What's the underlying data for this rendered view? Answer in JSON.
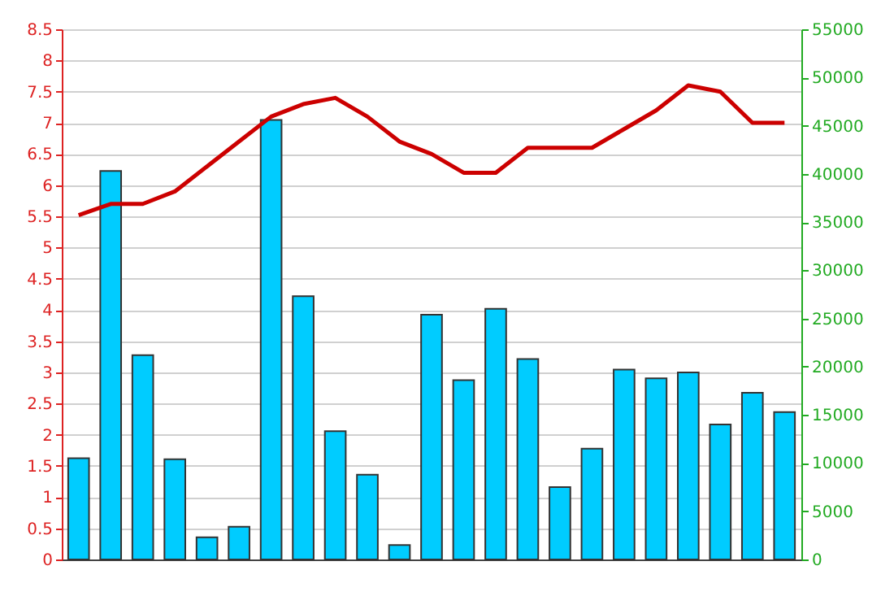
{
  "chart_data": {
    "type": "bar",
    "categories": [
      null,
      null,
      null,
      null,
      null,
      null,
      null,
      null,
      null,
      null,
      null,
      null,
      null,
      null,
      null,
      null,
      null,
      null,
      null,
      null,
      null,
      null,
      null
    ],
    "series": [
      {
        "axis": "y2",
        "color": "#00ccff",
        "values": [
          10500,
          40300,
          21200,
          10400,
          2300,
          3400,
          45600,
          27300,
          13300,
          8800,
          1500,
          25400,
          18600,
          26000,
          20800,
          7500,
          11500,
          19700,
          18800,
          19400,
          14000,
          17300,
          15300
        ]
      },
      {
        "type": "line",
        "axis": "y",
        "color": "#cc0000",
        "values": [
          5.52,
          5.7,
          5.7,
          5.9,
          6.3,
          6.7,
          7.1,
          7.3,
          7.4,
          7.1,
          6.7,
          6.5,
          6.2,
          6.2,
          6.6,
          6.6,
          6.6,
          6.9,
          7.2,
          7.6,
          7.5,
          7.0,
          7.0
        ]
      }
    ],
    "ylim": [
      0,
      8.5
    ],
    "yticks": [
      0,
      0.5,
      1,
      1.5,
      2,
      2.5,
      3,
      3.5,
      4,
      4.5,
      5,
      5.5,
      6,
      6.5,
      7,
      7.5,
      8,
      8.5
    ],
    "y2lim": [
      0,
      55000
    ],
    "y2ticks": [
      0,
      5000,
      10000,
      15000,
      20000,
      25000,
      30000,
      35000,
      40000,
      45000,
      50000,
      55000
    ],
    "grid": "y",
    "marker": "none",
    "line_style": "solid"
  }
}
